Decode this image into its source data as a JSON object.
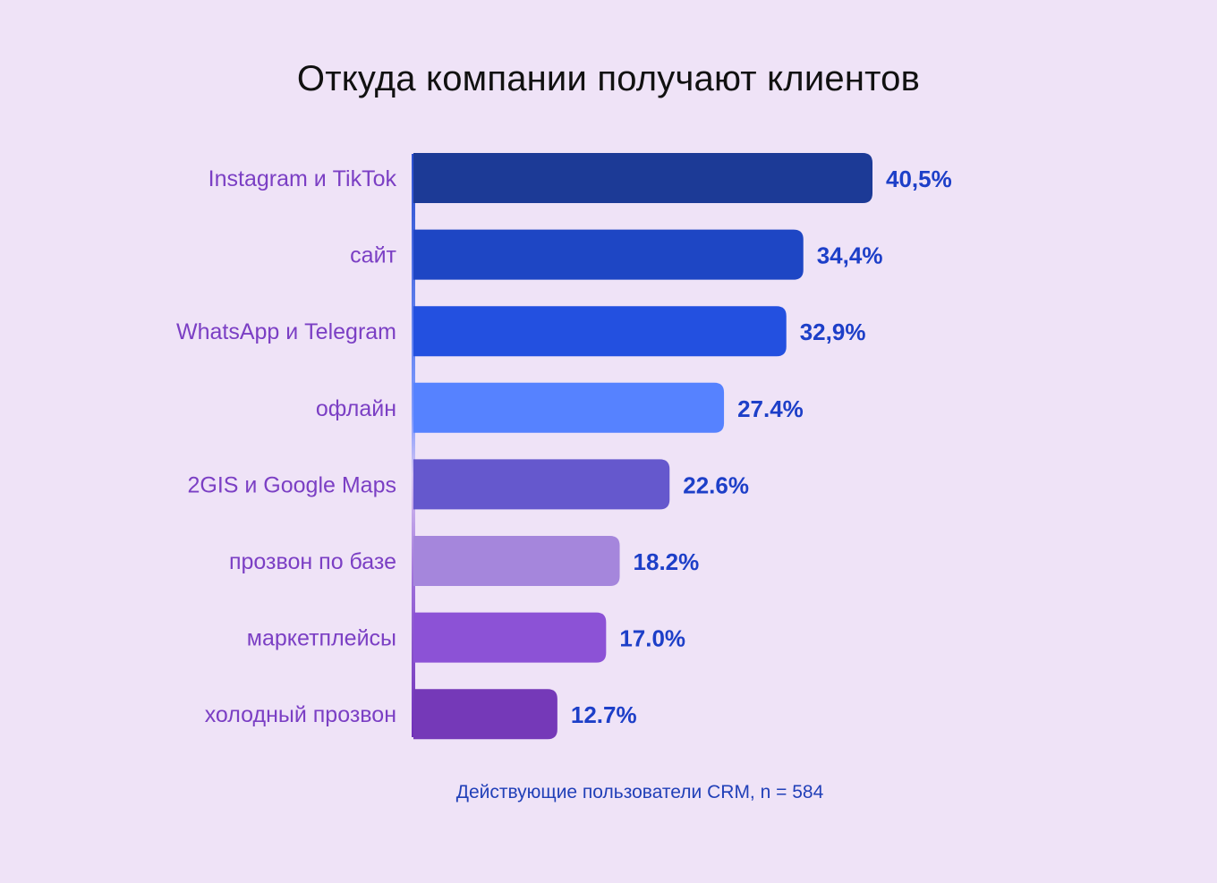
{
  "chart_data": {
    "type": "bar",
    "orientation": "horizontal",
    "title": "Откуда компании получают клиентов",
    "categories": [
      "Instagram и TikTok",
      "сайт",
      "WhatsApp и Telegram",
      "офлайн",
      "2GIS и Google Maps",
      "прозвон по базе",
      "маркетплейсы",
      "холодный прозвон"
    ],
    "values": [
      40.5,
      34.4,
      32.9,
      27.4,
      22.6,
      18.2,
      17.0,
      12.7
    ],
    "value_labels": [
      "40,5%",
      "34,4%",
      "32,9%",
      "27.4%",
      "22.6%",
      "18.2%",
      "17.0%",
      "12.7%"
    ],
    "bar_colors": [
      "#1C3A96",
      "#1E46C4",
      "#2350E0",
      "#5682FF",
      "#6558CD",
      "#A586DC",
      "#8C52D6",
      "#7539B8"
    ],
    "xlim": [
      0,
      40.5
    ],
    "grid": false,
    "legend": "none",
    "footnote": "Действующие пользователи CRM, n = 584"
  }
}
